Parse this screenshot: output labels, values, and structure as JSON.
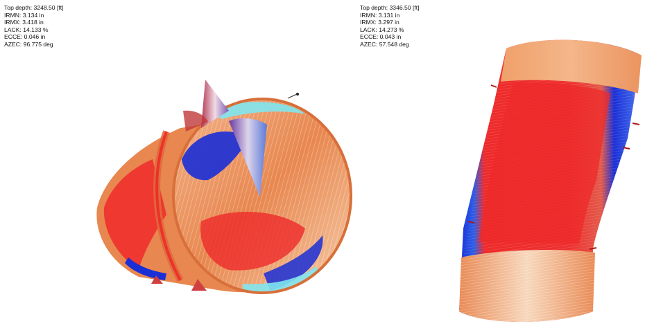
{
  "views": [
    {
      "readout": {
        "top_depth": "Top depth: 3248.50 [ft]",
        "irmn": "IRMN: 3.134 in",
        "irmx": "IRMX: 3.418 in",
        "lack": "LACK: 14.133 %",
        "ecce": "ECCE: 0.046 in",
        "azec": "AZEC: 96.775 deg"
      }
    },
    {
      "readout": {
        "top_depth": "Top depth: 3346.50 [ft]",
        "irmn": "IRMN: 3.131 in",
        "irmx": "IRMX: 3.297 in",
        "lack": "LACK: 14.273 %",
        "ecce": "ECCE: 0.043 in",
        "azec": "AZEC: 57.548 deg"
      }
    }
  ],
  "colors": {
    "background": "#ffffff",
    "text": "#111111",
    "orange": "#e8874f",
    "light_orange": "#f4c7a4",
    "red": "#ee2a2a",
    "blue": "#1a2fd6",
    "cyan": "#7fe6ee",
    "purple_arrow": "#8a4aa8"
  }
}
